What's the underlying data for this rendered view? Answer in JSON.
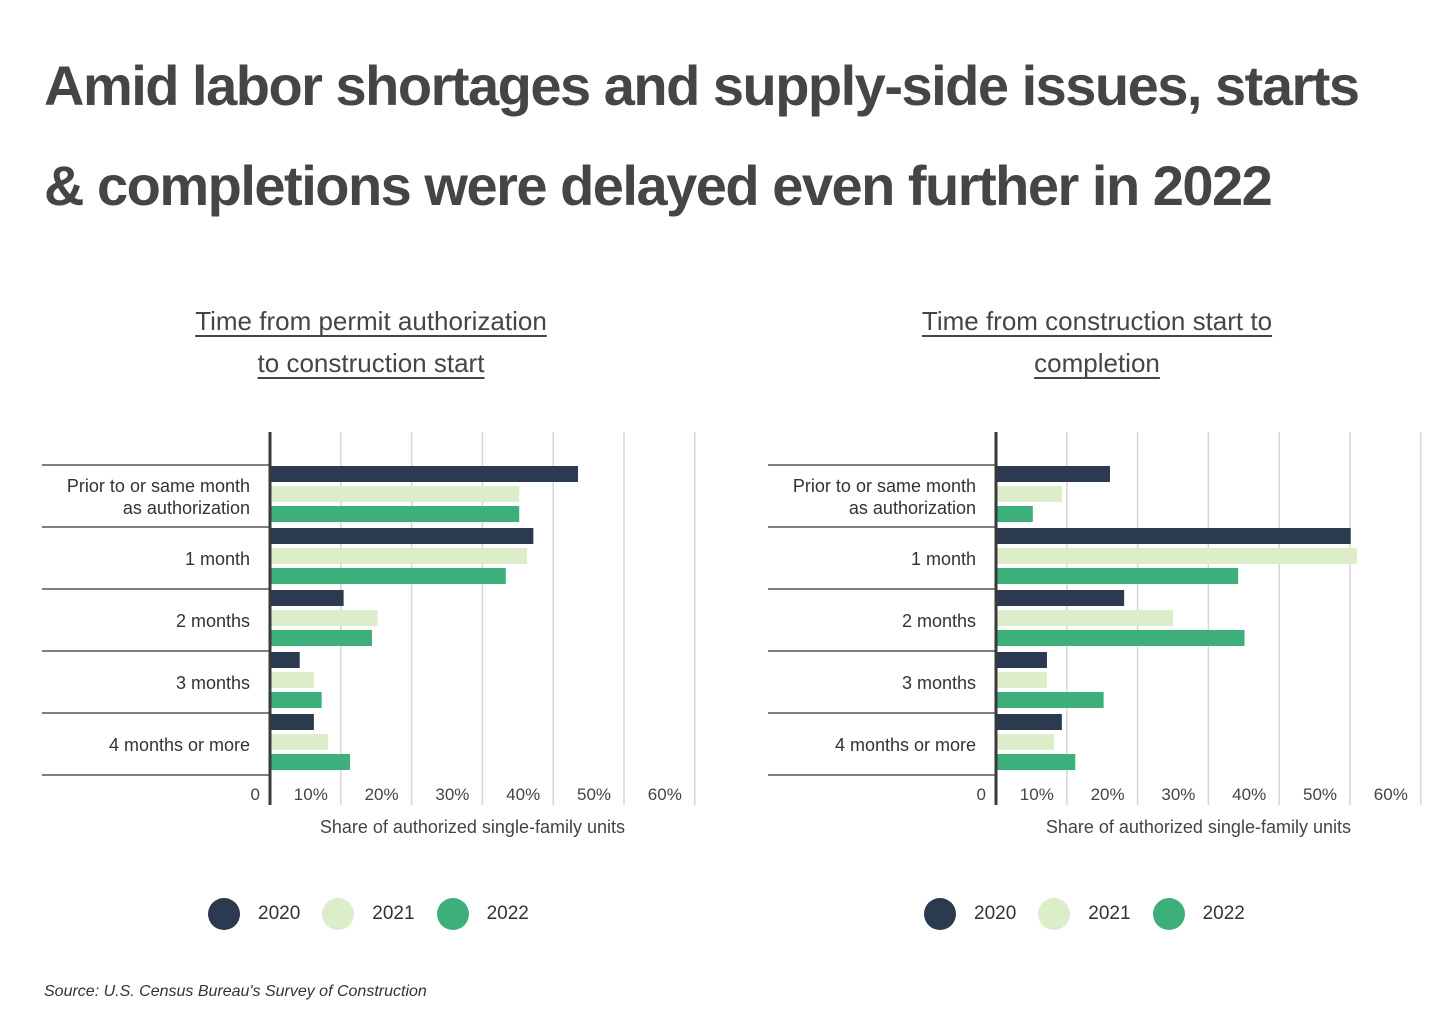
{
  "title_lines": [
    "Amid labor shortages and supply-side issues, starts",
    "& completions were delayed even further in 2022"
  ],
  "source": "Source: U.S. Census Bureau's Survey of Construction",
  "colors": {
    "2020": "#2c3a4f",
    "2021": "#ddedc9",
    "2022": "#3daf7b"
  },
  "legend": [
    {
      "label": "2020",
      "color": "#2c3a4f"
    },
    {
      "label": "2021",
      "color": "#ddedc9"
    },
    {
      "label": "2022",
      "color": "#3daf7b"
    }
  ],
  "chart_data": [
    {
      "type": "bar",
      "orientation": "horizontal",
      "title_lines": [
        "Time from permit authorization",
        "to construction start"
      ],
      "xlabel": "Share of authorized single-family units",
      "x_ticks": [
        "0",
        "10%",
        "20%",
        "30%",
        "40%",
        "50%",
        "60%"
      ],
      "xlim": [
        0,
        60
      ],
      "grid": true,
      "legend_placement": "bottom",
      "categories": [
        [
          "Prior to or same month",
          "as authorization"
        ],
        [
          "1 month"
        ],
        [
          "2 months"
        ],
        [
          "3 months"
        ],
        [
          "4 months or more"
        ]
      ],
      "series": [
        {
          "name": "2020",
          "values": [
            43.5,
            37.2,
            10.4,
            4.2,
            6.2
          ]
        },
        {
          "name": "2021",
          "values": [
            35.2,
            36.3,
            15.2,
            6.2,
            8.2
          ]
        },
        {
          "name": "2022",
          "values": [
            35.2,
            33.3,
            14.4,
            7.3,
            11.3
          ]
        }
      ]
    },
    {
      "type": "bar",
      "orientation": "horizontal",
      "title_lines": [
        "Time from construction start to",
        "completion"
      ],
      "xlabel": "Share of authorized single-family units",
      "x_ticks": [
        "0",
        "10%",
        "20%",
        "30%",
        "40%",
        "50%",
        "60%"
      ],
      "xlim": [
        0,
        60
      ],
      "grid": true,
      "legend_placement": "bottom",
      "categories": [
        [
          "Prior to or same month",
          "as authorization"
        ],
        [
          "1 month"
        ],
        [
          "2 months"
        ],
        [
          "3 months"
        ],
        [
          "4 months or more"
        ]
      ],
      "series": [
        {
          "name": "2020",
          "values": [
            16.1,
            50.1,
            18.1,
            7.2,
            9.3
          ]
        },
        {
          "name": "2021",
          "values": [
            9.3,
            51.0,
            25.0,
            7.2,
            8.2
          ]
        },
        {
          "name": "2022",
          "values": [
            5.2,
            34.2,
            35.1,
            15.2,
            11.2
          ]
        }
      ]
    }
  ]
}
